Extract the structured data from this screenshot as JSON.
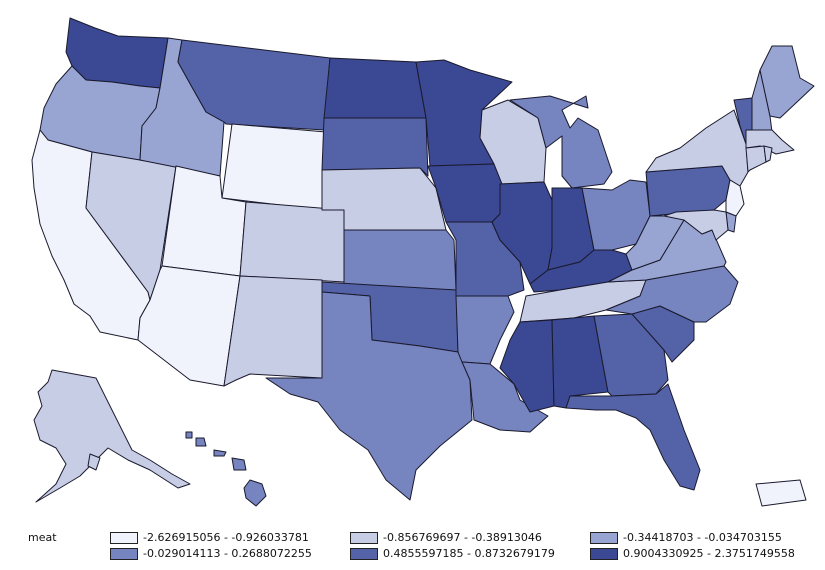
{
  "legend": {
    "title": "meat",
    "classes": [
      {
        "label": "-2.626915056 - -0.926033781",
        "color": "#f0f3fb"
      },
      {
        "label": "-0.856769697 - -0.38913046",
        "color": "#c8cde6"
      },
      {
        "label": "-0.34418703 - -0.034703155",
        "color": "#98a5d2"
      },
      {
        "label": "-0.029014113 - 0.2688072255",
        "color": "#7684bf"
      },
      {
        "label": "0.4855597185 - 0.8732679179",
        "color": "#5463a8"
      },
      {
        "label": "0.9004330925 - 2.3751749558",
        "color": "#3b4893"
      }
    ]
  },
  "state_classes": {
    "WA": 5,
    "OR": 2,
    "CA": 0,
    "NV": 1,
    "ID": 2,
    "MT": 4,
    "WY": 0,
    "UT": 0,
    "AZ": 0,
    "CO": 1,
    "NM": 1,
    "ND": 5,
    "SD": 4,
    "NE": 1,
    "KS": 3,
    "OK": 4,
    "TX": 3,
    "MN": 5,
    "IA": 5,
    "MO": 4,
    "AR": 3,
    "LA": 3,
    "WI": 1,
    "IL": 5,
    "MI": 3,
    "IN": 5,
    "OH": 3,
    "KY": 5,
    "TN": 1,
    "MS": 5,
    "AL": 5,
    "GA": 4,
    "FL": 4,
    "SC": 4,
    "NC": 3,
    "VA": 2,
    "WV": 2,
    "PA": 4,
    "NY": 1,
    "VT": 4,
    "NH": 2,
    "ME": 2,
    "MA": 1,
    "CT": 1,
    "RI": 1,
    "NJ": 0,
    "DE": 2,
    "MD": 1,
    "AK": 1,
    "HI": 3,
    "PR": 0
  }
}
